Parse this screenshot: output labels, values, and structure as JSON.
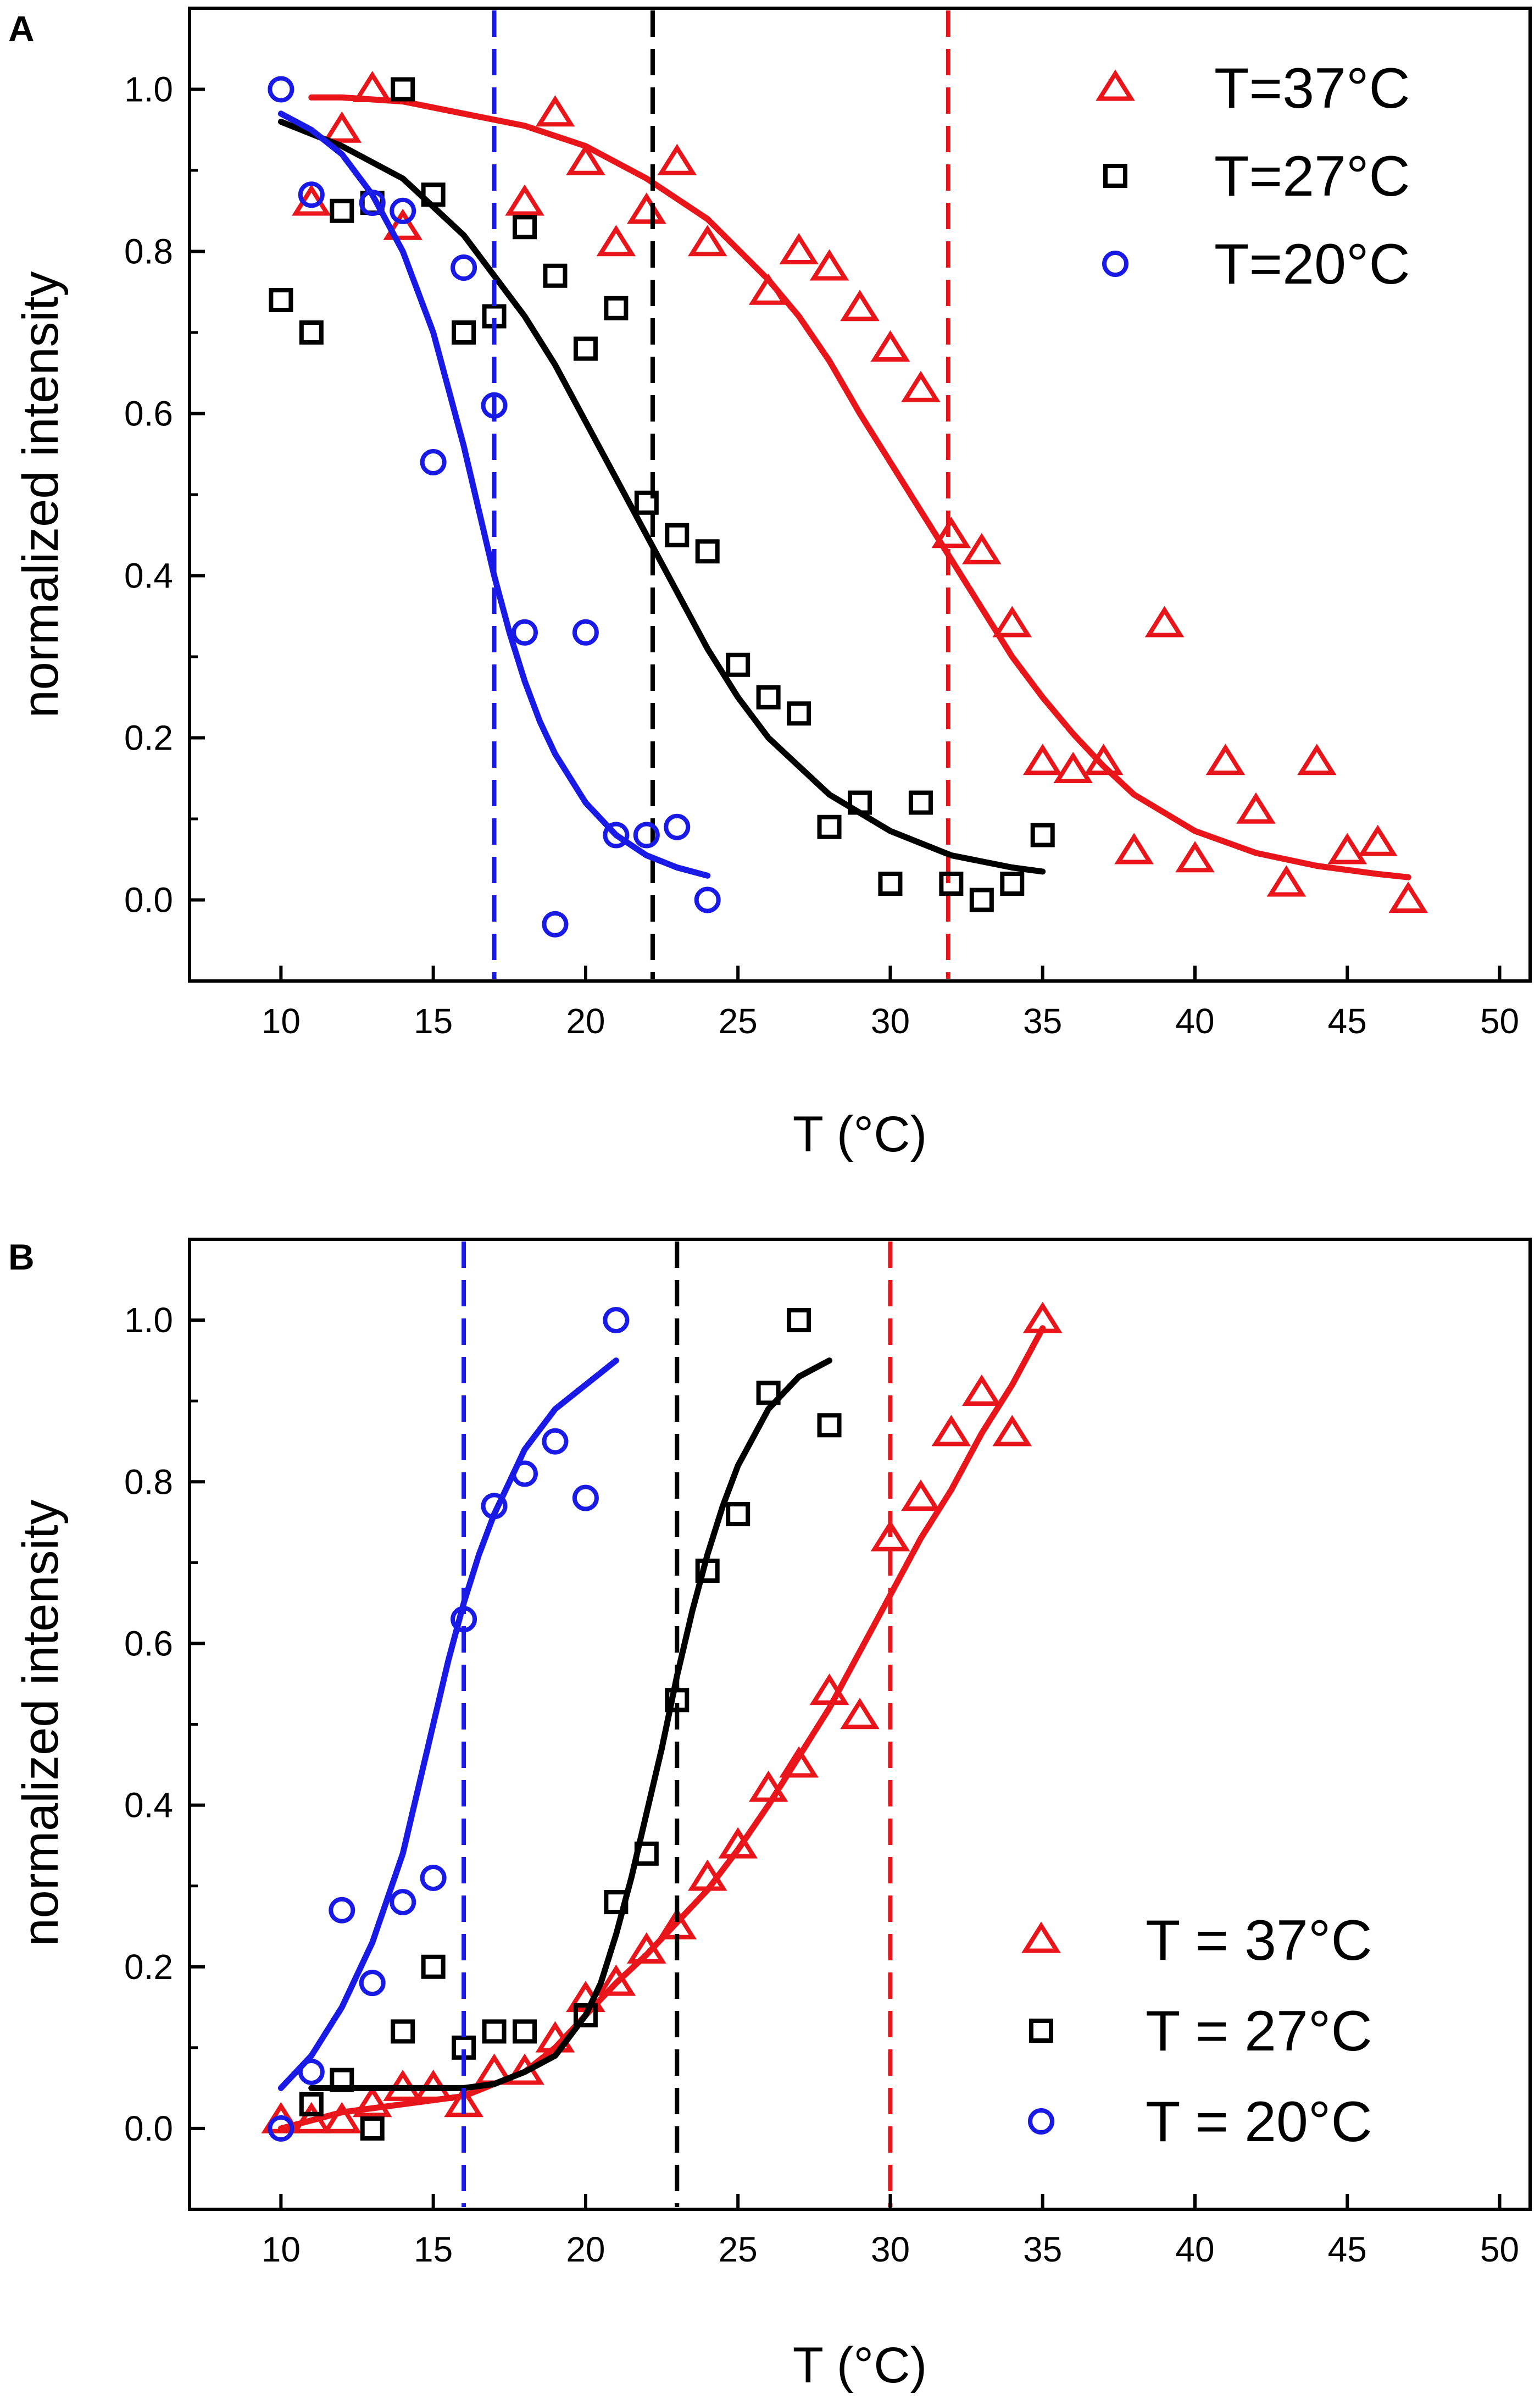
{
  "figure": {
    "panels": [
      "A",
      "B"
    ]
  },
  "colors": {
    "T37": "#e8161b",
    "T27": "#000000",
    "T20": "#1a1ae6",
    "axis": "#000000"
  },
  "chart_data": [
    {
      "panel": "A",
      "type": "scatter",
      "xlabel": "T (°C)",
      "ylabel": "normalized intensity",
      "xlim": [
        7,
        51
      ],
      "ylim": [
        -0.1,
        1.1
      ],
      "xticks": [
        10,
        15,
        20,
        25,
        30,
        35,
        40,
        45,
        50
      ],
      "xtick_labels": [
        "10",
        "15",
        "20",
        "25",
        "30",
        "35",
        "40",
        "45",
        "50"
      ],
      "yticks": [
        0.0,
        0.2,
        0.4,
        0.6,
        0.8,
        1.0
      ],
      "ytick_labels": [
        "0.0",
        "0.2",
        "0.4",
        "0.6",
        "0.8",
        "1.0"
      ],
      "legend_position": "top-right",
      "series": [
        {
          "name": "T=37°C",
          "key": "T37",
          "marker": "triangle",
          "x": [
            11,
            12,
            13,
            14,
            18,
            19,
            20,
            21,
            22,
            23,
            24,
            26,
            27,
            28,
            29,
            30,
            31,
            32,
            33,
            34,
            35,
            36,
            37,
            38,
            39,
            40,
            41,
            42,
            43,
            44,
            45,
            46,
            47
          ],
          "y": [
            0.86,
            0.95,
            1.0,
            0.83,
            0.86,
            0.97,
            0.91,
            0.81,
            0.85,
            0.91,
            0.81,
            0.75,
            0.8,
            0.78,
            0.73,
            0.68,
            0.63,
            0.45,
            0.43,
            0.34,
            0.17,
            0.16,
            0.17,
            0.06,
            0.34,
            0.05,
            0.17,
            0.11,
            0.02,
            0.17,
            0.06,
            0.07,
            0.0
          ],
          "fit": {
            "x": [
              11,
              12,
              14,
              16,
              18,
              20,
              22,
              24,
              26,
              27,
              28,
              29,
              30,
              31,
              32,
              33,
              34,
              35,
              36,
              37,
              38,
              40,
              42,
              44,
              46,
              47
            ],
            "y": [
              0.99,
              0.99,
              0.985,
              0.97,
              0.955,
              0.93,
              0.89,
              0.84,
              0.765,
              0.72,
              0.665,
              0.6,
              0.54,
              0.48,
              0.42,
              0.36,
              0.3,
              0.25,
              0.205,
              0.165,
              0.13,
              0.085,
              0.058,
              0.042,
              0.032,
              0.028
            ]
          },
          "vline": 31.9
        },
        {
          "name": "T=27°C",
          "key": "T27",
          "marker": "square",
          "x": [
            10,
            11,
            12,
            13,
            14,
            15,
            16,
            17,
            18,
            19,
            20,
            21,
            22,
            23,
            24,
            25,
            26,
            27,
            28,
            29,
            30,
            31,
            32,
            33,
            34,
            35
          ],
          "y": [
            0.74,
            0.7,
            0.85,
            0.86,
            1.0,
            0.87,
            0.7,
            0.72,
            0.83,
            0.77,
            0.68,
            0.73,
            0.49,
            0.45,
            0.43,
            0.29,
            0.25,
            0.23,
            0.09,
            0.12,
            0.02,
            0.12,
            0.02,
            0.0,
            0.02,
            0.08
          ],
          "fit": {
            "x": [
              10,
              12,
              14,
              16,
              18,
              19,
              20,
              21,
              22,
              23,
              24,
              25,
              26,
              28,
              30,
              32,
              34,
              35
            ],
            "y": [
              0.96,
              0.93,
              0.89,
              0.82,
              0.72,
              0.66,
              0.59,
              0.52,
              0.45,
              0.38,
              0.31,
              0.25,
              0.2,
              0.13,
              0.085,
              0.055,
              0.04,
              0.035
            ]
          },
          "vline": 22.2
        },
        {
          "name": "T=20°C",
          "key": "T20",
          "marker": "circle",
          "x": [
            10,
            11,
            13,
            14,
            15,
            16,
            17,
            18,
            19,
            20,
            21,
            22,
            23,
            24
          ],
          "y": [
            1.0,
            0.87,
            0.86,
            0.85,
            0.54,
            0.78,
            0.61,
            0.33,
            -0.03,
            0.33,
            0.08,
            0.08,
            0.09,
            0.0
          ],
          "fit": {
            "x": [
              10,
              11,
              12,
              13,
              14,
              15,
              15.5,
              16,
              16.5,
              17,
              17.5,
              18,
              18.5,
              19,
              20,
              21,
              22,
              23,
              24
            ],
            "y": [
              0.97,
              0.95,
              0.92,
              0.87,
              0.8,
              0.7,
              0.63,
              0.56,
              0.48,
              0.4,
              0.33,
              0.27,
              0.22,
              0.18,
              0.12,
              0.08,
              0.055,
              0.04,
              0.03
            ]
          },
          "vline": 17.0
        }
      ]
    },
    {
      "panel": "B",
      "type": "scatter",
      "xlabel": "T (°C)",
      "ylabel": "normalized intensity",
      "xlim": [
        7,
        51
      ],
      "ylim": [
        -0.1,
        1.1
      ],
      "xticks": [
        10,
        15,
        20,
        25,
        30,
        35,
        40,
        45,
        50
      ],
      "xtick_labels": [
        "10",
        "15",
        "20",
        "25",
        "30",
        "35",
        "40",
        "45",
        "50"
      ],
      "yticks": [
        0.0,
        0.2,
        0.4,
        0.6,
        0.8,
        1.0
      ],
      "ytick_labels": [
        "0.0",
        "0.2",
        "0.4",
        "0.6",
        "0.8",
        "1.0"
      ],
      "legend_position": "bottom-right",
      "series": [
        {
          "name": "T = 37°C",
          "key": "T37",
          "marker": "triangle",
          "x": [
            10,
            11,
            12,
            13,
            14,
            15,
            16,
            17,
            18,
            19,
            20,
            21,
            22,
            23,
            24,
            25,
            26,
            27,
            28,
            29,
            30,
            31,
            32,
            33,
            34,
            35
          ],
          "y": [
            0.01,
            0.01,
            0.01,
            0.03,
            0.05,
            0.05,
            0.03,
            0.07,
            0.07,
            0.11,
            0.16,
            0.18,
            0.22,
            0.25,
            0.31,
            0.35,
            0.42,
            0.45,
            0.54,
            0.51,
            0.73,
            0.78,
            0.86,
            0.91,
            0.86,
            1.0
          ],
          "fit": {
            "x": [
              10,
              12,
              14,
              16,
              17,
              18,
              19,
              20,
              21,
              22,
              23,
              24,
              25,
              26,
              27,
              28,
              29,
              30,
              31,
              32,
              33,
              34,
              35
            ],
            "y": [
              0.0,
              0.02,
              0.03,
              0.04,
              0.055,
              0.07,
              0.1,
              0.14,
              0.18,
              0.215,
              0.255,
              0.295,
              0.345,
              0.4,
              0.46,
              0.52,
              0.59,
              0.66,
              0.73,
              0.79,
              0.86,
              0.92,
              0.99
            ]
          },
          "vline": 30.0
        },
        {
          "name": "T = 27°C",
          "key": "T27",
          "marker": "square",
          "x": [
            11,
            12,
            13,
            14,
            15,
            16,
            17,
            18,
            20,
            21,
            22,
            23,
            24,
            25,
            26,
            27,
            28
          ],
          "y": [
            0.03,
            0.06,
            0.0,
            0.12,
            0.2,
            0.1,
            0.12,
            0.12,
            0.14,
            0.28,
            0.34,
            0.53,
            0.69,
            0.76,
            0.91,
            1.0,
            0.87
          ],
          "fit": {
            "x": [
              11,
              13,
              15,
              16,
              17,
              18,
              19,
              20,
              20.5,
              21,
              21.5,
              22,
              22.5,
              23,
              23.5,
              24,
              24.5,
              25,
              26,
              27,
              28
            ],
            "y": [
              0.05,
              0.05,
              0.05,
              0.05,
              0.055,
              0.07,
              0.09,
              0.14,
              0.18,
              0.24,
              0.31,
              0.39,
              0.47,
              0.56,
              0.64,
              0.71,
              0.77,
              0.82,
              0.89,
              0.93,
              0.95
            ]
          },
          "vline": 23.0
        },
        {
          "name": "T = 20°C",
          "key": "T20",
          "marker": "circle",
          "x": [
            10,
            11,
            12,
            13,
            14,
            15,
            16,
            17,
            18,
            19,
            20,
            21
          ],
          "y": [
            0.0,
            0.07,
            0.27,
            0.18,
            0.28,
            0.31,
            0.63,
            0.77,
            0.81,
            0.85,
            0.78,
            1.0
          ],
          "fit": {
            "x": [
              10,
              11,
              12,
              13,
              14,
              14.5,
              15,
              15.5,
              16,
              16.5,
              17,
              17.5,
              18,
              19,
              20,
              21
            ],
            "y": [
              0.05,
              0.09,
              0.15,
              0.23,
              0.34,
              0.42,
              0.5,
              0.58,
              0.65,
              0.71,
              0.76,
              0.8,
              0.84,
              0.89,
              0.92,
              0.95
            ]
          },
          "vline": 16.0
        }
      ]
    }
  ]
}
